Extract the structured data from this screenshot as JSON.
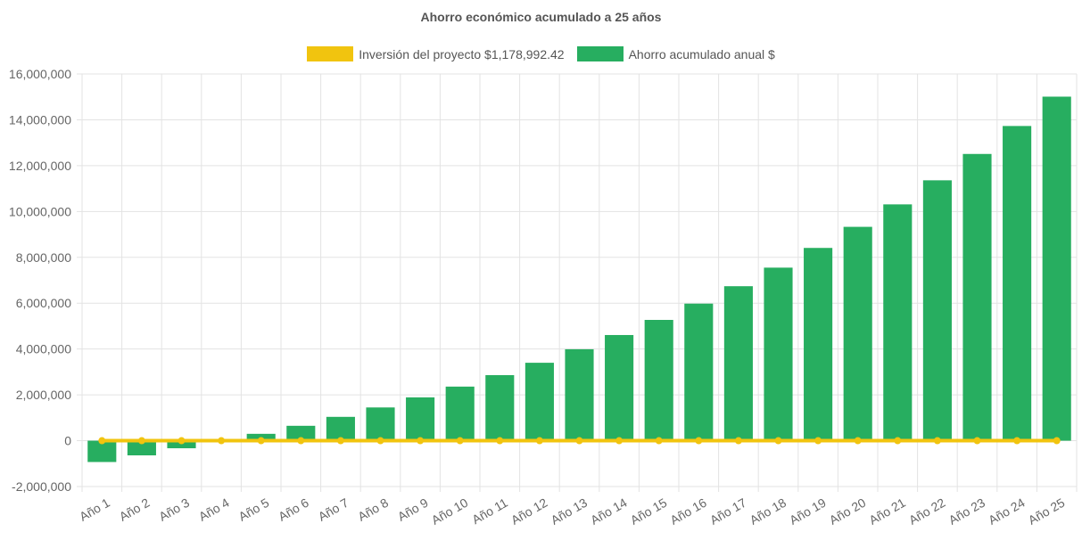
{
  "chart_data": {
    "type": "bar",
    "title": "Ahorro económico acumulado a 25 años",
    "categories": [
      "Año 1",
      "Año 2",
      "Año 3",
      "Año 4",
      "Año 5",
      "Año 6",
      "Año 7",
      "Año 8",
      "Año 9",
      "Año 10",
      "Año 11",
      "Año 12",
      "Año 13",
      "Año 14",
      "Año 15",
      "Año 16",
      "Año 17",
      "Año 18",
      "Año 19",
      "Año 20",
      "Año 21",
      "Año 22",
      "Año 23",
      "Año 24",
      "Año 25"
    ],
    "series": [
      {
        "name": "Inversión del proyecto $1,178,992.42",
        "type": "line",
        "color": "#f1c40f",
        "values": [
          0,
          0,
          0,
          0,
          0,
          0,
          0,
          0,
          0,
          0,
          0,
          0,
          0,
          0,
          0,
          0,
          0,
          0,
          0,
          0,
          0,
          0,
          0,
          0,
          0
        ]
      },
      {
        "name": "Ahorro acumulado anual $",
        "type": "bar",
        "color": "#27ae60",
        "values": [
          -930000,
          -640000,
          -330000,
          -10000,
          300000,
          650000,
          1040000,
          1450000,
          1890000,
          2360000,
          2860000,
          3400000,
          3990000,
          4610000,
          5270000,
          5980000,
          6740000,
          7550000,
          8410000,
          9330000,
          10310000,
          11360000,
          12510000,
          13730000,
          15010000
        ]
      }
    ],
    "ylim": [
      -2000000,
      16000000
    ],
    "ytick_step": 2000000,
    "ytick_labels": [
      "-2,000,000",
      "0",
      "2,000,000",
      "4,000,000",
      "6,000,000",
      "8,000,000",
      "10,000,000",
      "12,000,000",
      "14,000,000",
      "16,000,000"
    ],
    "grid": true,
    "legend_position": "top"
  }
}
